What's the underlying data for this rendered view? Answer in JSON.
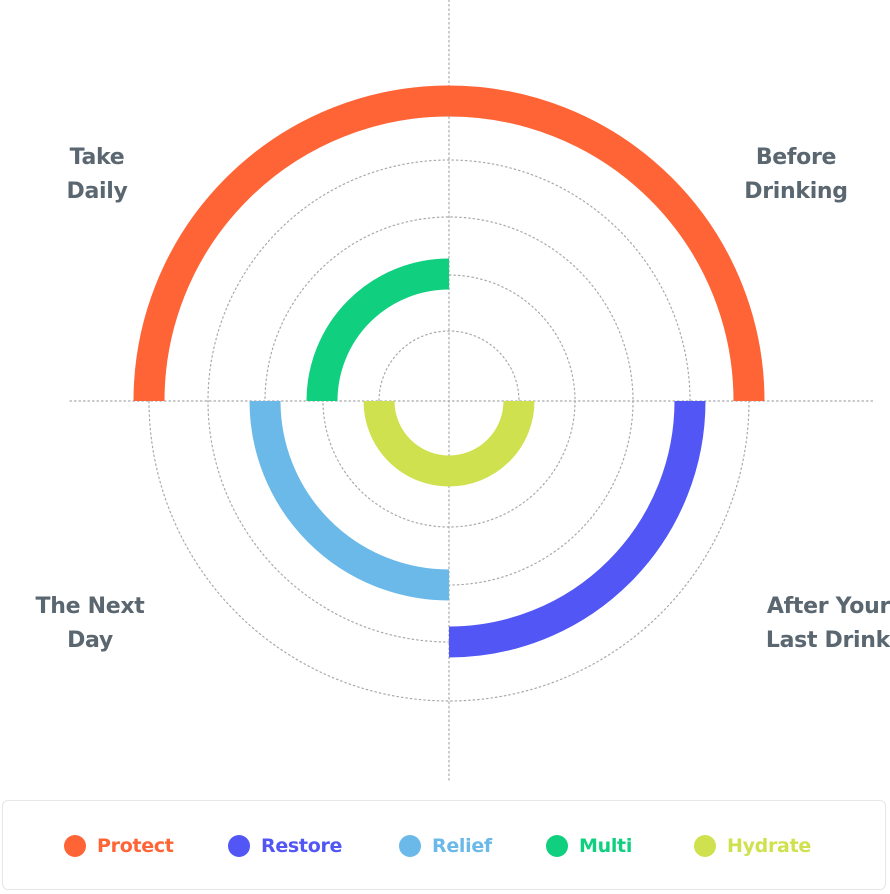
{
  "quadrants": {
    "top_left": [
      "Take",
      "Daily"
    ],
    "top_right": [
      "Before",
      "Drinking"
    ],
    "bottom_left": [
      "The Next",
      "Day"
    ],
    "bottom_right": [
      "After Your",
      "Last Drink"
    ]
  },
  "colors": {
    "label": "#5b6770",
    "guide": "#a7a9ac"
  },
  "legend": [
    {
      "label": "Protect",
      "color": "#ff6436"
    },
    {
      "label": "Restore",
      "color": "#5156f5"
    },
    {
      "label": "Relief",
      "color": "#6ab9e8"
    },
    {
      "label": "Multi",
      "color": "#10cf7e"
    },
    {
      "label": "Hydrate",
      "color": "#d0e14f"
    }
  ],
  "arcs": [
    {
      "product": "Protect",
      "quadrants": [
        "top_left",
        "top_right"
      ],
      "ring": 5
    },
    {
      "product": "Restore",
      "quadrants": [
        "bottom_right"
      ],
      "ring": 4
    },
    {
      "product": "Relief",
      "quadrants": [
        "bottom_left"
      ],
      "ring": 3
    },
    {
      "product": "Multi",
      "quadrants": [
        "top_left"
      ],
      "ring": 2
    },
    {
      "product": "Hydrate",
      "quadrants": [
        "bottom_left",
        "bottom_right"
      ],
      "ring": 1
    }
  ]
}
